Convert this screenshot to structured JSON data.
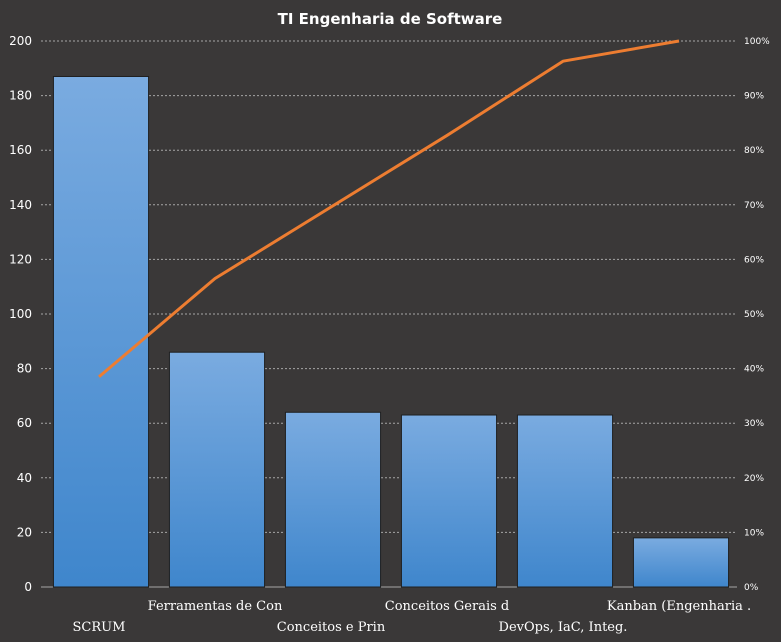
{
  "chart_data": {
    "type": "bar",
    "title": "TI Engenharia de Software",
    "categories": [
      "SCRUM",
      "Ferramentas de Con",
      "Conceitos e Prin",
      "Conceitos Gerais d",
      "DevOps, IaC, Integ.",
      "Kanban (Engenharia ."
    ],
    "series": [
      {
        "type": "bar",
        "values": [
          187,
          86,
          64,
          63,
          63,
          18
        ],
        "color": "#5b9bd5"
      },
      {
        "type": "line",
        "axis": "right",
        "values": [
          0.385,
          0.565,
          0.696,
          0.827,
          0.963,
          1.0
        ],
        "color": "#ed7d31"
      }
    ],
    "ylim": [
      0,
      200
    ],
    "yticks": [
      "0",
      "20",
      "40",
      "60",
      "80",
      "100",
      "120",
      "140",
      "160",
      "180",
      "200"
    ],
    "y2lim": [
      0,
      1
    ],
    "y2ticks": [
      "0%",
      "10%",
      "20%",
      "30%",
      "40%",
      "50%",
      "60%",
      "70%",
      "80%",
      "90%",
      "100%"
    ],
    "grid": true,
    "legend": "none",
    "colors": {
      "background": "#3a3838",
      "grid": "#a6a6a6",
      "bar": "#5b9bd5",
      "line": "#ed7d31"
    }
  }
}
